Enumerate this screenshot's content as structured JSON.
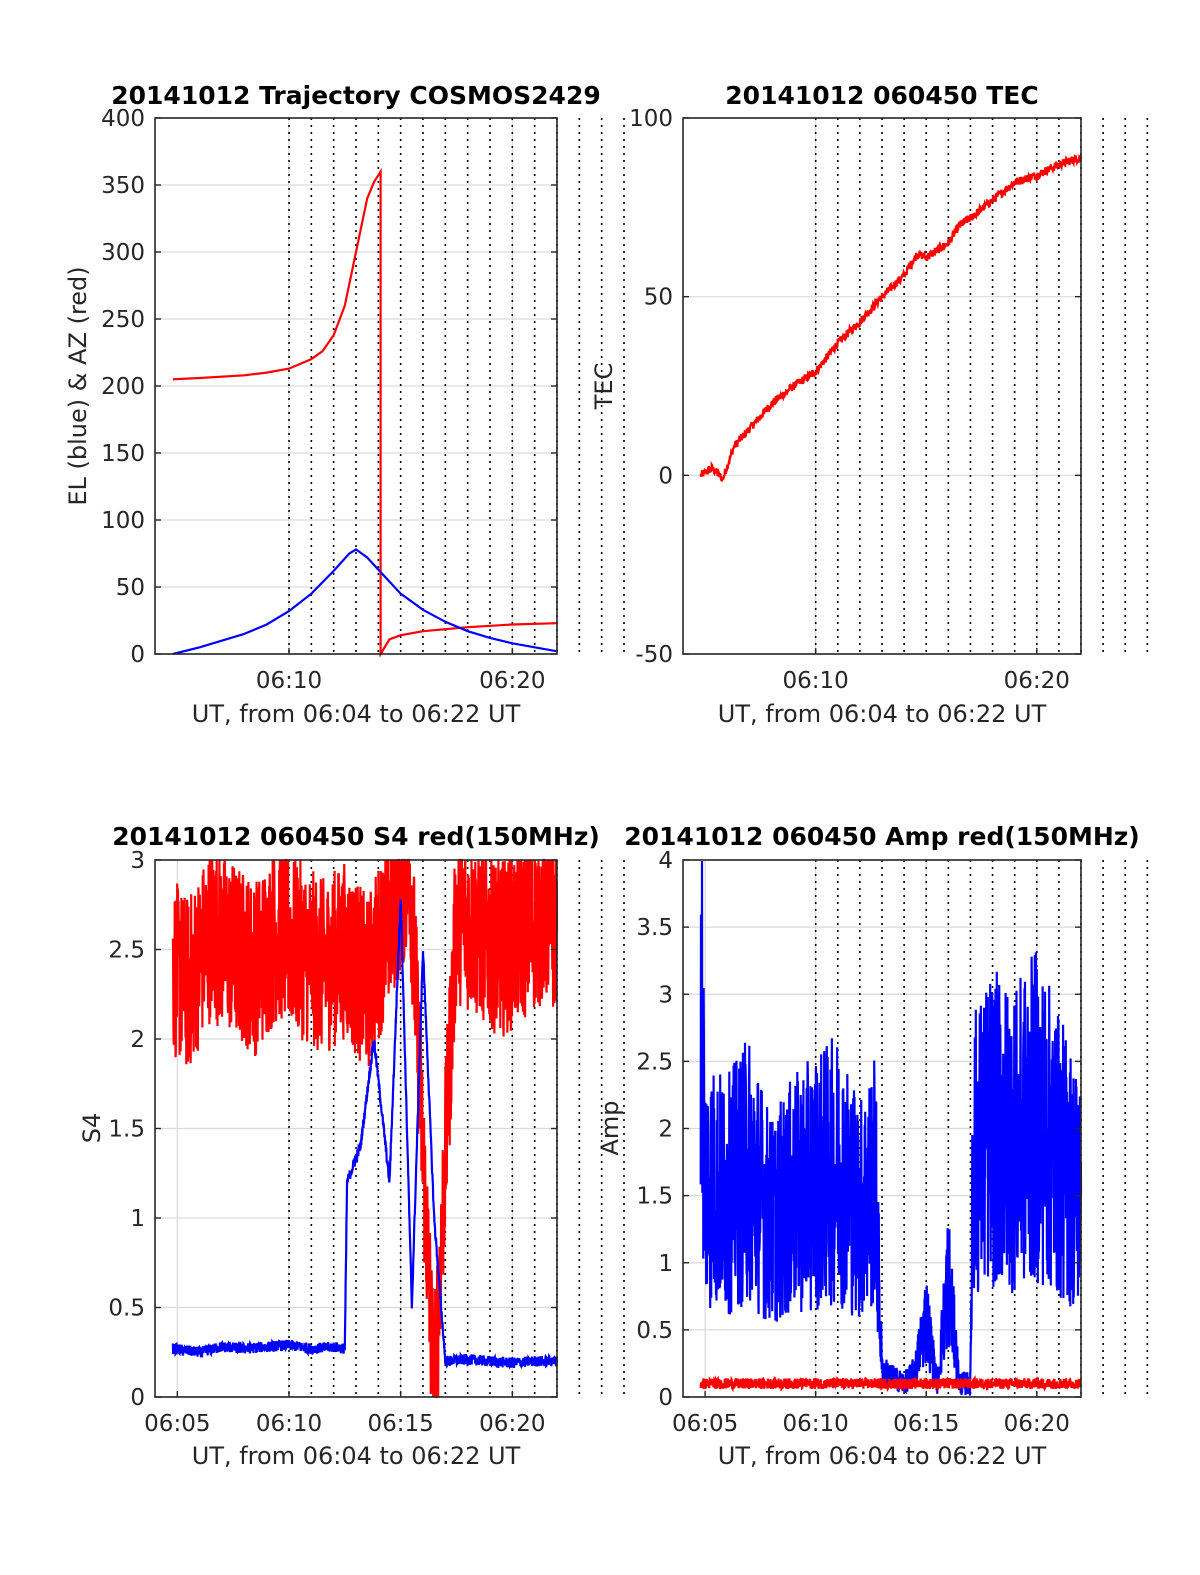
{
  "colors": {
    "red": "#ff0000",
    "blue": "#0000ff",
    "grid": "#d9d9d9",
    "axis": "#262626"
  },
  "chart_data": [
    {
      "type": "line",
      "title": "20141012 Trajectory COSMOS2429",
      "xlabel": "UT, from 06:04 to 06:22 UT",
      "ylabel": "EL (blue) & AZ (red)",
      "xlim": [
        "06:04",
        "06:22"
      ],
      "ylim": [
        0,
        400
      ],
      "xticks": [
        "06:10",
        "06:20"
      ],
      "yticks": [
        0,
        50,
        100,
        150,
        200,
        250,
        300,
        350,
        400
      ],
      "grid": true,
      "dotted_vlines_minutes": [
        6,
        7,
        8,
        9,
        10,
        11,
        12,
        13,
        14,
        15,
        16,
        17,
        18,
        19,
        20,
        21
      ],
      "series": [
        {
          "color": "red",
          "x": [
            "06:04.8",
            "06:06",
            "06:08",
            "06:09",
            "06:10",
            "06:11",
            "06:11.5",
            "06:12",
            "06:12.5",
            "06:13",
            "06:13.5",
            "06:13.8",
            "06:14.1",
            "06:14.1",
            "06:14.5",
            "06:15",
            "06:16",
            "06:18",
            "06:20",
            "06:22"
          ],
          "y": [
            205,
            206,
            208,
            210,
            213,
            220,
            226,
            238,
            260,
            300,
            340,
            352,
            360,
            0,
            11,
            14,
            17,
            20,
            22,
            23
          ]
        },
        {
          "color": "blue",
          "x": [
            "06:04.8",
            "06:06",
            "06:08",
            "06:09",
            "06:10",
            "06:11",
            "06:12",
            "06:12.7",
            "06:13",
            "06:13.5",
            "06:14",
            "06:15",
            "06:16",
            "06:17",
            "06:18",
            "06:19",
            "06:20",
            "06:21",
            "06:22"
          ],
          "y": [
            0,
            5,
            15,
            22,
            32,
            45,
            62,
            75,
            78,
            72,
            63,
            45,
            33,
            24,
            17,
            12,
            8,
            5,
            2
          ]
        }
      ]
    },
    {
      "type": "line",
      "title": "20141012 060450 TEC",
      "xlabel": "UT, from 06:04 to 06:22 UT",
      "ylabel": "TEC",
      "xlim": [
        "06:04",
        "06:22"
      ],
      "ylim": [
        -50,
        100
      ],
      "xticks": [
        "06:10",
        "06:20"
      ],
      "yticks": [
        -50,
        0,
        50,
        100
      ],
      "grid": true,
      "dotted_vlines_minutes": [
        6,
        7,
        8,
        9,
        10,
        11,
        12,
        13,
        14,
        15,
        16,
        17,
        18,
        19,
        20,
        21
      ],
      "series": [
        {
          "color": "red",
          "x": [
            "06:04.8",
            "06:05.3",
            "06:05.8",
            "06:06.3",
            "06:07",
            "06:08",
            "06:09",
            "06:10",
            "06:11",
            "06:12",
            "06:13",
            "06:14",
            "06:14.6",
            "06:15",
            "06:15.5",
            "06:16",
            "06:16.5",
            "06:17",
            "06:18",
            "06:19",
            "06:20",
            "06:21",
            "06:22"
          ],
          "y": [
            0,
            2,
            -1,
            8,
            13,
            20,
            25,
            29,
            37,
            43,
            50,
            56,
            62,
            61,
            63,
            65,
            70,
            72,
            77,
            82,
            84,
            87,
            89
          ]
        }
      ]
    },
    {
      "type": "line",
      "title": "20141012 060450 S4 red(150MHz)",
      "xlabel": "UT, from 06:04 to 06:22 UT",
      "ylabel": "S4",
      "xlim": [
        "06:04",
        "06:22"
      ],
      "ylim": [
        0,
        3
      ],
      "xticks": [
        "06:05",
        "06:10",
        "06:15",
        "06:20"
      ],
      "yticks": [
        0,
        0.5,
        1,
        1.5,
        2,
        2.5,
        3
      ],
      "grid": true,
      "dotted_vlines_minutes": [
        6,
        7,
        8,
        9,
        10,
        11,
        12,
        13,
        14,
        15,
        16,
        17,
        18,
        19,
        20,
        21
      ],
      "series": [
        {
          "color": "red",
          "x": [
            "06:04.8",
            "06:05.5",
            "06:06.5",
            "06:07.5",
            "06:08.5",
            "06:09.5",
            "06:10.5",
            "06:11.5",
            "06:12.5",
            "06:13.5",
            "06:15.4",
            "06:16.5",
            "06:17.5",
            "06:18.5",
            "06:19.5",
            "06:20.5",
            "06:21.5",
            "06:22"
          ],
          "y": [
            2.4,
            2.3,
            2.6,
            2.5,
            2.4,
            2.6,
            2.5,
            2.4,
            2.5,
            2.3,
            3.0,
            0.0,
            2.7,
            2.6,
            2.5,
            2.6,
            2.7,
            2.6
          ]
        },
        {
          "color": "blue",
          "x": [
            "06:04.8",
            "06:06",
            "06:07",
            "06:08",
            "06:09",
            "06:10",
            "06:11",
            "06:12",
            "06:12.5",
            "06:12.6",
            "06:13.2",
            "06:13.8",
            "06:14.5",
            "06:15",
            "06:15.5",
            "06:16",
            "06:16.5",
            "06:17",
            "06:18",
            "06:19",
            "06:20",
            "06:21",
            "06:22"
          ],
          "y": [
            0.27,
            0.25,
            0.28,
            0.27,
            0.28,
            0.29,
            0.27,
            0.28,
            0.27,
            1.2,
            1.4,
            2.0,
            1.2,
            2.8,
            0.5,
            2.5,
            1.0,
            0.2,
            0.21,
            0.2,
            0.19,
            0.2,
            0.2
          ]
        }
      ]
    },
    {
      "type": "line",
      "title": "20141012 060450 Amp red(150MHz)",
      "xlabel": "UT, from 06:04 to 06:22 UT",
      "ylabel": "Amp",
      "xlim": [
        "06:04",
        "06:22"
      ],
      "ylim": [
        0,
        4
      ],
      "xticks": [
        "06:05",
        "06:10",
        "06:15",
        "06:20"
      ],
      "yticks": [
        0,
        0.5,
        1,
        1.5,
        2,
        2.5,
        3,
        3.5,
        4
      ],
      "grid": true,
      "dotted_vlines_minutes": [
        6,
        7,
        8,
        9,
        10,
        11,
        12,
        13,
        14,
        15,
        16,
        17,
        18,
        19,
        20,
        21
      ],
      "series": [
        {
          "color": "blue",
          "x": [
            "06:04.8",
            "06:05",
            "06:06",
            "06:07",
            "06:08",
            "06:09",
            "06:10",
            "06:11",
            "06:12",
            "06:12.7",
            "06:13",
            "06:14",
            "06:14.5",
            "06:15",
            "06:15.5",
            "06:16",
            "06:16.5",
            "06:17",
            "06:17.1",
            "06:18",
            "06:19",
            "06:20",
            "06:21",
            "06:22"
          ],
          "y": [
            3.2,
            1.6,
            1.5,
            1.7,
            1.3,
            1.5,
            1.6,
            1.7,
            1.4,
            1.6,
            0.2,
            0.1,
            0.2,
            0.6,
            0.1,
            0.9,
            0.1,
            0.1,
            1.8,
            2.0,
            1.9,
            2.1,
            1.8,
            1.5
          ]
        },
        {
          "color": "red",
          "x": [
            "06:04.8",
            "06:07",
            "06:10",
            "06:13",
            "06:16",
            "06:19",
            "06:22"
          ],
          "y": [
            0.1,
            0.1,
            0.1,
            0.1,
            0.1,
            0.1,
            0.1
          ]
        }
      ]
    }
  ]
}
